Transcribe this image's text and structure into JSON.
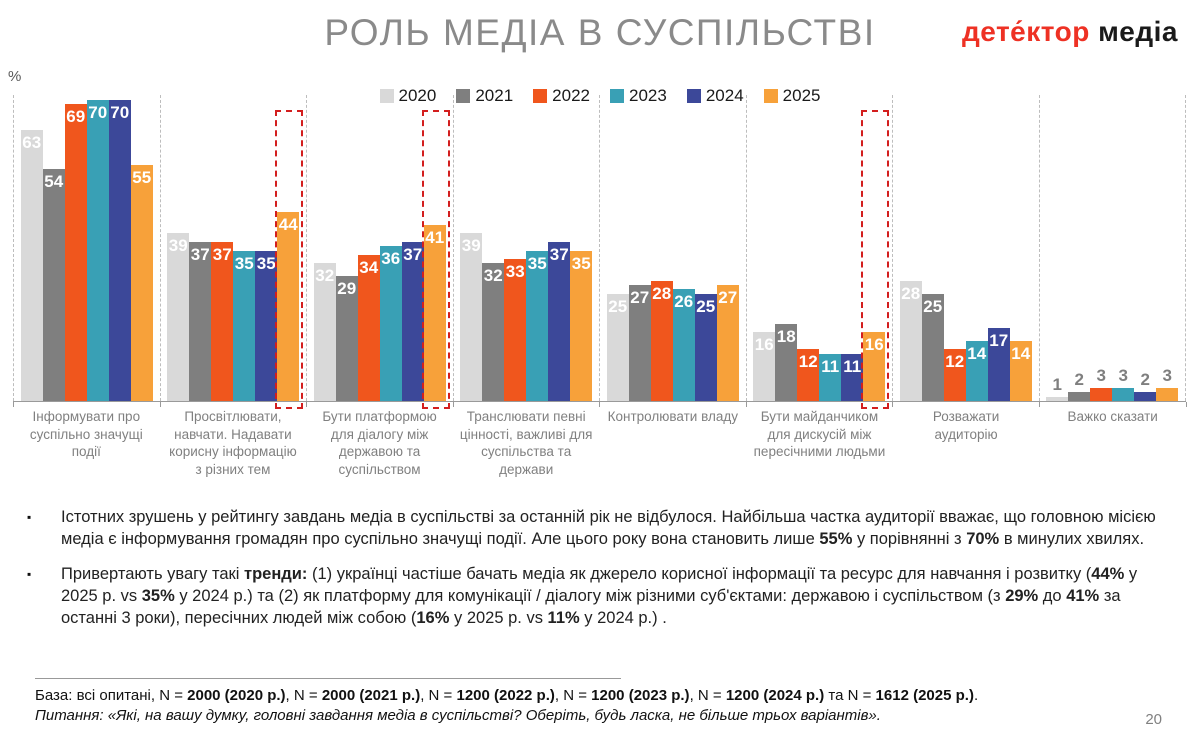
{
  "header": {
    "title": "РОЛЬ МЕДІА В СУСПІЛЬСТВІ",
    "logo_part1": "дете́ктор ",
    "logo_part2": "медіа",
    "logo_color1": "#ee3124",
    "logo_color2": "#1a1a1a"
  },
  "chart_data": {
    "type": "bar",
    "unit_label": "%",
    "title": "РОЛЬ МЕДІА В СУСПІЛЬСТВІ",
    "legend_position": "top",
    "value_labels": true,
    "grid": false,
    "ylim": [
      0,
      71
    ],
    "categories": [
      "Інформувати про суспільно значущі події",
      "Просвітлювати, навчати. Надавати корисну інформацію з різних тем",
      "Бути платформою для діалогу між державою та суспільством",
      "Транслювати певні цінності, важливі для суспільства та держави",
      "Контролювати владу",
      "Бути майданчиком для дискусій між пересічними людьми",
      "Розважати аудиторію",
      "Важко сказати"
    ],
    "series": [
      {
        "name": "2020",
        "color": "#d9d9d9",
        "values": [
          63,
          39,
          32,
          39,
          25,
          16,
          28,
          1
        ]
      },
      {
        "name": "2021",
        "color": "#7f7f7f",
        "values": [
          54,
          37,
          29,
          32,
          27,
          18,
          25,
          2
        ]
      },
      {
        "name": "2022",
        "color": "#f0561d",
        "values": [
          69,
          37,
          34,
          33,
          28,
          12,
          12,
          3
        ]
      },
      {
        "name": "2023",
        "color": "#39a0b5",
        "values": [
          70,
          35,
          36,
          35,
          26,
          11,
          14,
          3
        ]
      },
      {
        "name": "2024",
        "color": "#3c4899",
        "values": [
          70,
          35,
          37,
          37,
          25,
          11,
          17,
          2
        ]
      },
      {
        "name": "2025",
        "color": "#f7a13a",
        "values": [
          55,
          44,
          41,
          35,
          27,
          16,
          14,
          3
        ]
      }
    ],
    "highlighted_categories": [
      1,
      2,
      5
    ],
    "highlight_series": "2025",
    "highlight_color": "#d31e1e"
  },
  "bullets": [
    {
      "marker": "▪",
      "segments": [
        {
          "t": "Істотних зрушень у рейтингу завдань медіа в суспільстві за останній рік не відбулося. Найбільша частка аудиторії вважає, що головною місією медіа є інформування громадян про суспільно значущі події. Але цього року вона становить лише ",
          "b": false
        },
        {
          "t": "55%",
          "b": true
        },
        {
          "t": " у порівнянні з ",
          "b": false
        },
        {
          "t": "70%",
          "b": true
        },
        {
          "t": " в минулих хвилях.",
          "b": false
        }
      ]
    },
    {
      "marker": "▪",
      "segments": [
        {
          "t": "Привертають увагу такі ",
          "b": false
        },
        {
          "t": "тренди:",
          "b": true
        },
        {
          "t": " (1) українці частіше бачать медіа як джерело корисної інформації та ресурс для навчання і розвитку (",
          "b": false
        },
        {
          "t": "44%",
          "b": true
        },
        {
          "t": " у 2025 р. vs ",
          "b": false
        },
        {
          "t": "35%",
          "b": true
        },
        {
          "t": " у 2024 р.) та (2) як платформу для комунікації / діалогу між різними суб'єктами: державою і суспільством (з ",
          "b": false
        },
        {
          "t": "29%",
          "b": true
        },
        {
          "t": " до ",
          "b": false
        },
        {
          "t": "41%",
          "b": true
        },
        {
          "t": " за останні 3 роки), пересічних людей між собою (",
          "b": false
        },
        {
          "t": "16%",
          "b": true
        },
        {
          "t": " у 2025 р. vs ",
          "b": false
        },
        {
          "t": "11%",
          "b": true
        },
        {
          "t": " у 2024 р.) .",
          "b": false
        }
      ]
    }
  ],
  "footer": {
    "base_segments": [
      {
        "t": "База: всі опитані, N = ",
        "b": false
      },
      {
        "t": "2000 (2020 р.)",
        "b": true
      },
      {
        "t": ", N = ",
        "b": false
      },
      {
        "t": "2000 (2021 р.)",
        "b": true
      },
      {
        "t": ", N = ",
        "b": false
      },
      {
        "t": "1200 (2022 р.)",
        "b": true
      },
      {
        "t": ", N = ",
        "b": false
      },
      {
        "t": "1200 (2023 р.)",
        "b": true
      },
      {
        "t": ", N = ",
        "b": false
      },
      {
        "t": "1200 (2024 р.)",
        "b": true
      },
      {
        "t": " та N = ",
        "b": false
      },
      {
        "t": "1612 (2025 р.)",
        "b": true
      },
      {
        "t": ".",
        "b": false
      }
    ],
    "question": "Питання: «Які, на вашу думку, головні завдання медіа в суспільстві? Оберіть, будь ласка, не більше трьох варіантів».",
    "page_number": "20"
  }
}
